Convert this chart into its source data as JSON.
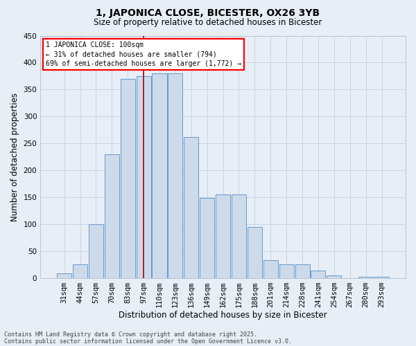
{
  "title": "1, JAPONICA CLOSE, BICESTER, OX26 3YB",
  "subtitle": "Size of property relative to detached houses in Bicester",
  "xlabel": "Distribution of detached houses by size in Bicester",
  "ylabel": "Number of detached properties",
  "categories": [
    "31sqm",
    "44sqm",
    "57sqm",
    "70sqm",
    "83sqm",
    "97sqm",
    "110sqm",
    "123sqm",
    "136sqm",
    "149sqm",
    "162sqm",
    "175sqm",
    "188sqm",
    "201sqm",
    "214sqm",
    "228sqm",
    "241sqm",
    "254sqm",
    "267sqm",
    "280sqm",
    "293sqm"
  ],
  "values": [
    8,
    25,
    100,
    230,
    370,
    375,
    380,
    380,
    262,
    148,
    155,
    155,
    95,
    33,
    25,
    25,
    13,
    5,
    0,
    2,
    2
  ],
  "bar_color": "#ccdaea",
  "bar_edge_color": "#6699cc",
  "grid_color": "#c8d4e4",
  "bg_color": "#e8eef6",
  "vline_x": 5,
  "vline_color": "#aa0000",
  "annotation_line1": "1 JAPONICA CLOSE: 100sqm",
  "annotation_line2": "← 31% of detached houses are smaller (794)",
  "annotation_line3": "69% of semi-detached houses are larger (1,772) →",
  "annotation_box_facecolor": "white",
  "annotation_box_edgecolor": "red",
  "footer_text": "Contains HM Land Registry data © Crown copyright and database right 2025.\nContains public sector information licensed under the Open Government Licence v3.0.",
  "ylim": [
    0,
    450
  ],
  "yticks": [
    0,
    50,
    100,
    150,
    200,
    250,
    300,
    350,
    400,
    450
  ],
  "title_fontsize": 10,
  "subtitle_fontsize": 8.5,
  "xlabel_fontsize": 8.5,
  "ylabel_fontsize": 8.5,
  "tick_fontsize": 7.5,
  "footer_fontsize": 6.0
}
